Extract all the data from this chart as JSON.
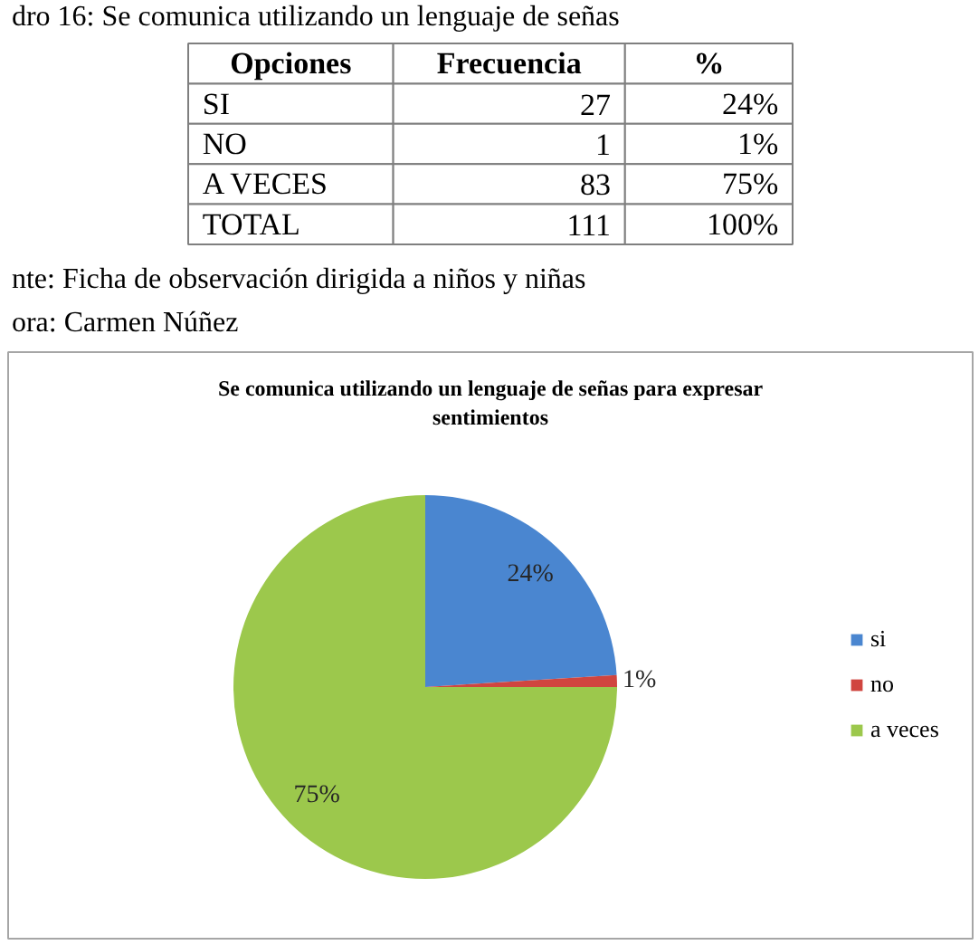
{
  "chart_data": [
    {
      "type": "other",
      "title": "dro 16: Se comunica utilizando un lenguaje de señas",
      "xlabel": "Opciones",
      "categories": [
        "SI",
        "NO",
        "A VECES",
        "TOTAL"
      ],
      "data_labels": true,
      "series": [
        {
          "name": "Frecuencia",
          "values": [
            27,
            1,
            83,
            111
          ]
        },
        {
          "name": "%",
          "values": [
            24,
            1,
            75,
            100
          ],
          "value_labels": [
            "24%",
            "1%",
            "75%",
            "100%"
          ]
        }
      ],
      "annotations": [
        "nte: Ficha de observación dirigida a niños y niñas",
        "ora: Carmen Núñez"
      ]
    },
    {
      "type": "pie",
      "title": "Se comunica utilizando un lenguaje de señas para expresar sentimientos",
      "categories": [
        "si",
        "no",
        "a veces"
      ],
      "values": [
        24,
        1,
        75
      ],
      "colors": [
        "#4a86d0",
        "#d0453f",
        "#9cc84c"
      ],
      "value_labels": [
        "24%",
        "1%",
        "75%"
      ],
      "legend": "right"
    }
  ]
}
